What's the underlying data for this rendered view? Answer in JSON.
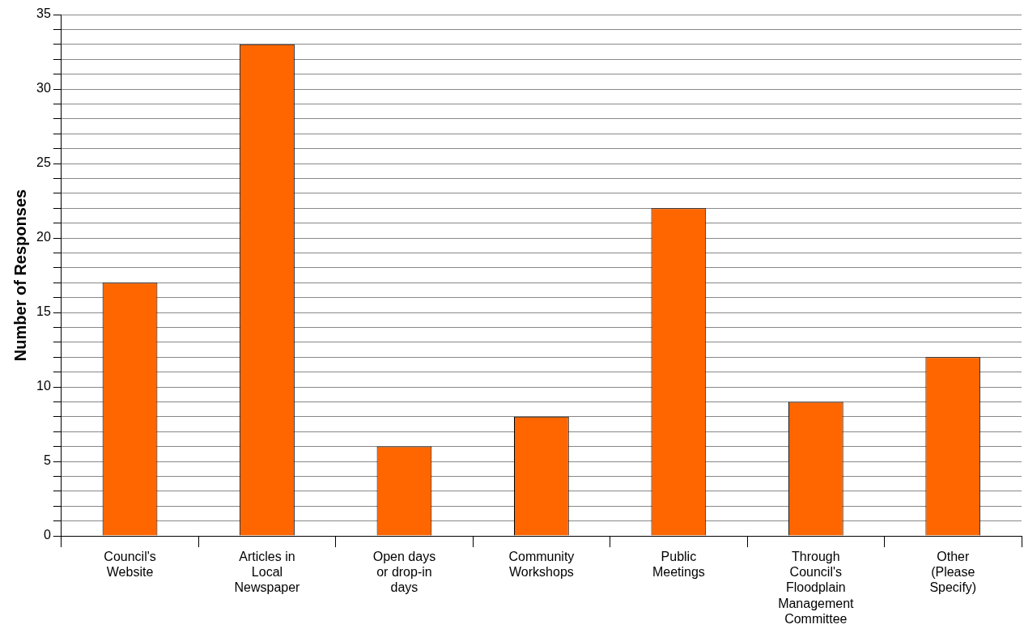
{
  "chart_data": {
    "type": "bar",
    "ylabel": "Number of Responses",
    "categories": [
      "Council's Website",
      "Articles in Local Newspaper",
      "Open days or drop-in days",
      "Community Workshops",
      "Public Meetings",
      "Through Council's Floodplain Management Committee",
      "Other (Please Specify)"
    ],
    "values": [
      17,
      33,
      6,
      8,
      22,
      9,
      12
    ],
    "color": "#ff6600",
    "ylim": [
      0,
      35
    ],
    "yticks": [
      0,
      {
        "value": 1,
        "label": null
      },
      {
        "value": 2,
        "label": null
      },
      {
        "value": 3,
        "label": null
      },
      {
        "value": 4,
        "label": null
      },
      5,
      {
        "value": 6,
        "label": null
      },
      {
        "value": 7,
        "label": null
      },
      {
        "value": 8,
        "label": null
      },
      {
        "value": 9,
        "label": null
      },
      10,
      {
        "value": 11,
        "label": null
      },
      {
        "value": 12,
        "label": null
      },
      {
        "value": 13,
        "label": null
      },
      {
        "value": 14,
        "label": null
      },
      15,
      {
        "value": 16,
        "label": null
      },
      {
        "value": 17,
        "label": null
      },
      {
        "value": 18,
        "label": null
      },
      {
        "value": 19,
        "label": null
      },
      20,
      {
        "value": 21,
        "label": null
      },
      {
        "value": 22,
        "label": null
      },
      {
        "value": 23,
        "label": null
      },
      {
        "value": 24,
        "label": null
      },
      25,
      {
        "value": 26,
        "label": null
      },
      {
        "value": 27,
        "label": null
      },
      {
        "value": 28,
        "label": null
      },
      {
        "value": 29,
        "label": null
      },
      30,
      {
        "value": 31,
        "label": null
      },
      {
        "value": 32,
        "label": null
      },
      {
        "value": 33,
        "label": null
      },
      {
        "value": 34,
        "label": null
      },
      35
    ],
    "grid": "y",
    "legend": false
  }
}
